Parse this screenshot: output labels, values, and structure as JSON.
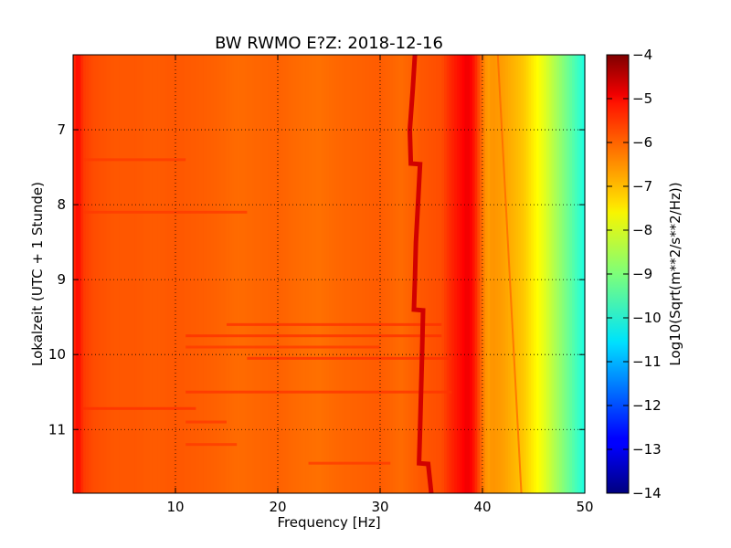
{
  "chart_data": {
    "type": "heatmap",
    "title": "BW RWMO E?Z: 2018-12-16",
    "xlabel": "Frequency [Hz]",
    "ylabel": "Lokalzeit (UTC + 1 Stunde)",
    "xlim": [
      0,
      50
    ],
    "ylim": [
      6.0,
      11.85
    ],
    "x_ticks": [
      10,
      20,
      30,
      40,
      50
    ],
    "y_ticks": [
      7,
      8,
      9,
      10,
      11
    ],
    "x_tick_labels": [
      "10",
      "20",
      "30",
      "40",
      "50"
    ],
    "y_tick_labels": [
      "7",
      "8",
      "9",
      "10",
      "11"
    ],
    "y_inverted": true,
    "grid": true,
    "colormap": "jet",
    "colorbar": {
      "label": "Log10(Sqrt(m**2/s**2/Hz))",
      "range": [
        -14,
        -4
      ],
      "ticks": [
        -4,
        -5,
        -6,
        -7,
        -8,
        -9,
        -10,
        -11,
        -12,
        -13,
        -14
      ],
      "tick_labels": [
        "−4",
        "−5",
        "−6",
        "−7",
        "−8",
        "−9",
        "−10",
        "−11",
        "−12",
        "−13",
        "−14"
      ]
    },
    "spectral_profile": {
      "frequency": [
        0,
        0.5,
        1,
        2,
        4,
        6,
        8,
        10,
        12,
        14,
        16,
        18,
        20,
        22,
        24,
        26,
        28,
        30,
        32,
        34,
        36,
        37,
        38,
        38.5,
        39,
        39.5,
        40,
        40.5,
        41,
        42,
        43,
        44,
        45,
        46,
        47,
        48,
        49,
        50
      ],
      "value": [
        -5.7,
        -5.3,
        -5.8,
        -6.0,
        -6.1,
        -6.1,
        -6.15,
        -6.1,
        -6.15,
        -6.2,
        -6.3,
        -6.25,
        -6.2,
        -6.3,
        -6.35,
        -6.25,
        -6.2,
        -6.15,
        -6.3,
        -6.1,
        -6.0,
        -5.6,
        -5.3,
        -5.1,
        -5.3,
        -5.8,
        -6.4,
        -6.8,
        -6.7,
        -6.8,
        -7.0,
        -7.2,
        -7.6,
        -8.0,
        -8.5,
        -9.0,
        -9.5,
        -10.0
      ]
    },
    "tonal_line": {
      "value": -4.8,
      "time": [
        6.0,
        6.45,
        7.0,
        7.45,
        7.46,
        8.0,
        8.5,
        9.0,
        9.4,
        9.41,
        10.0,
        10.5,
        11.0,
        11.45,
        11.46,
        11.85
      ],
      "frequency": [
        33.4,
        33.2,
        32.9,
        33.0,
        33.9,
        33.7,
        33.5,
        33.4,
        33.3,
        34.2,
        34.1,
        34.0,
        33.9,
        33.8,
        34.7,
        35.0
      ]
    },
    "faint_band": {
      "time": [
        6.0,
        11.85
      ],
      "frequency": [
        41.5,
        43.8
      ]
    },
    "horizontal_streaks": [
      {
        "time": 9.6,
        "freq_range": [
          15,
          36
        ],
        "value": -5.7
      },
      {
        "time": 9.75,
        "freq_range": [
          11,
          36
        ],
        "value": -5.7
      },
      {
        "time": 9.9,
        "freq_range": [
          11,
          30
        ],
        "value": -5.8
      },
      {
        "time": 10.05,
        "freq_range": [
          17,
          37
        ],
        "value": -5.7
      },
      {
        "time": 10.5,
        "freq_range": [
          11,
          37
        ],
        "value": -5.75
      },
      {
        "time": 10.72,
        "freq_range": [
          1,
          12
        ],
        "value": -5.7
      },
      {
        "time": 10.9,
        "freq_range": [
          11,
          15
        ],
        "value": -5.8
      },
      {
        "time": 11.2,
        "freq_range": [
          11,
          16
        ],
        "value": -5.8
      },
      {
        "time": 11.45,
        "freq_range": [
          23,
          31
        ],
        "value": -5.8
      },
      {
        "time": 8.1,
        "freq_range": [
          1,
          17
        ],
        "value": -5.8
      },
      {
        "time": 7.4,
        "freq_range": [
          1,
          11
        ],
        "value": -5.8
      }
    ]
  }
}
